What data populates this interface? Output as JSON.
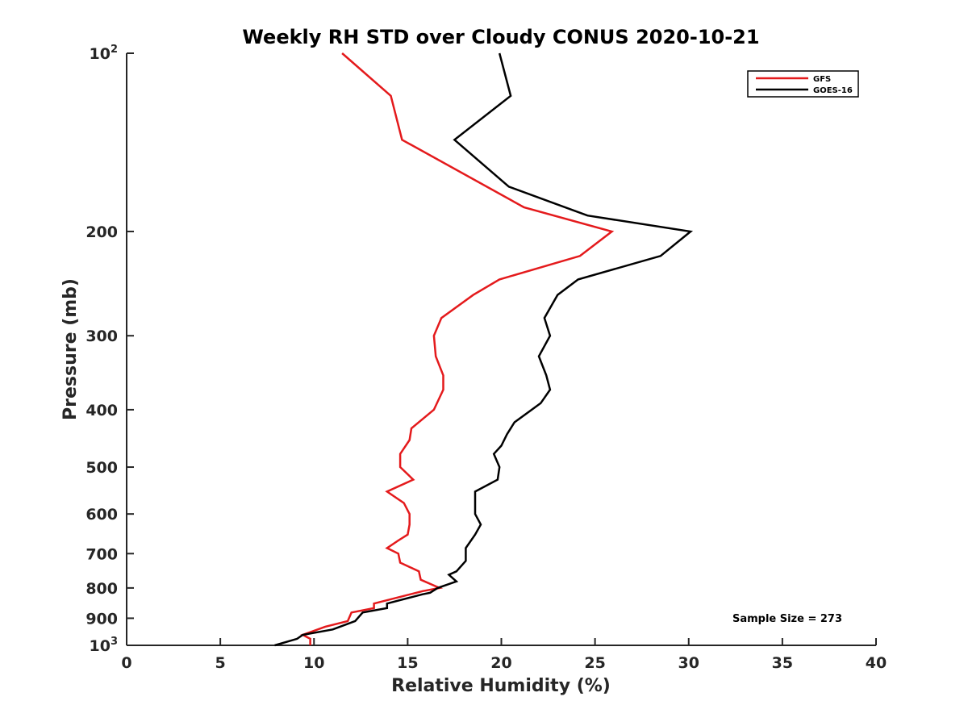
{
  "chart_data": {
    "type": "line",
    "title": "Weekly RH STD over Cloudy CONUS 2020-10-21",
    "xlabel": "Relative Humidity (%)",
    "ylabel": "Pressure (mb)",
    "xlim": [
      0,
      40
    ],
    "ylim": [
      100,
      1000
    ],
    "y_scale": "log",
    "y_reversed": true,
    "grid": false,
    "legend_position": "top-right",
    "x_ticks": [
      "0",
      "5",
      "10",
      "15",
      "20",
      "25",
      "30",
      "35",
      "40"
    ],
    "y_ticks": [
      {
        "value": 100,
        "base": "10",
        "exp": "2"
      },
      {
        "value": 200,
        "label": "200"
      },
      {
        "value": 300,
        "label": "300"
      },
      {
        "value": 400,
        "label": "400"
      },
      {
        "value": 500,
        "label": "500"
      },
      {
        "value": 600,
        "label": "600"
      },
      {
        "value": 700,
        "label": "700"
      },
      {
        "value": 800,
        "label": "800"
      },
      {
        "value": 900,
        "label": "900"
      },
      {
        "value": 1000,
        "base": "10",
        "exp": "3"
      }
    ],
    "annotation": "Sample Size = 273",
    "series": [
      {
        "name": "GFS",
        "color": "#e41a1c",
        "points": [
          [
            11.5,
            100
          ],
          [
            14.1,
            118
          ],
          [
            14.7,
            140
          ],
          [
            21.2,
            182
          ],
          [
            25.9,
            200
          ],
          [
            24.2,
            220
          ],
          [
            19.9,
            241
          ],
          [
            18.5,
            256
          ],
          [
            16.8,
            280
          ],
          [
            16.4,
            300
          ],
          [
            16.5,
            325
          ],
          [
            16.9,
            350
          ],
          [
            16.9,
            370
          ],
          [
            16.4,
            400
          ],
          [
            15.2,
            430
          ],
          [
            15.1,
            450
          ],
          [
            14.6,
            475
          ],
          [
            14.6,
            500
          ],
          [
            15.3,
            525
          ],
          [
            13.9,
            550
          ],
          [
            14.8,
            575
          ],
          [
            15.1,
            600
          ],
          [
            15.1,
            625
          ],
          [
            15.0,
            650
          ],
          [
            14.5,
            665
          ],
          [
            13.9,
            685
          ],
          [
            14.5,
            700
          ],
          [
            14.6,
            725
          ],
          [
            15.6,
            750
          ],
          [
            15.7,
            775
          ],
          [
            16.7,
            800
          ],
          [
            15.8,
            810
          ],
          [
            13.2,
            850
          ],
          [
            13.2,
            865
          ],
          [
            12.0,
            880
          ],
          [
            11.8,
            910
          ],
          [
            10.6,
            930
          ],
          [
            9.4,
            960
          ],
          [
            9.8,
            975
          ],
          [
            9.8,
            1000
          ]
        ]
      },
      {
        "name": "GOES-16",
        "color": "#000000",
        "points": [
          [
            19.9,
            100
          ],
          [
            20.5,
            118
          ],
          [
            17.5,
            140
          ],
          [
            20.4,
            168
          ],
          [
            24.6,
            188
          ],
          [
            30.1,
            200
          ],
          [
            28.5,
            220
          ],
          [
            24.1,
            241
          ],
          [
            23.0,
            256
          ],
          [
            22.3,
            280
          ],
          [
            22.6,
            300
          ],
          [
            22.0,
            325
          ],
          [
            22.4,
            350
          ],
          [
            22.6,
            370
          ],
          [
            22.1,
            390
          ],
          [
            20.7,
            420
          ],
          [
            20.3,
            440
          ],
          [
            20.0,
            460
          ],
          [
            19.6,
            475
          ],
          [
            19.9,
            500
          ],
          [
            19.8,
            525
          ],
          [
            18.6,
            550
          ],
          [
            18.6,
            600
          ],
          [
            18.9,
            625
          ],
          [
            18.6,
            650
          ],
          [
            18.1,
            685
          ],
          [
            18.1,
            720
          ],
          [
            17.6,
            750
          ],
          [
            17.2,
            760
          ],
          [
            17.6,
            780
          ],
          [
            16.6,
            800
          ],
          [
            16.2,
            815
          ],
          [
            15.8,
            820
          ],
          [
            13.9,
            850
          ],
          [
            13.9,
            865
          ],
          [
            12.6,
            880
          ],
          [
            12.2,
            910
          ],
          [
            11.0,
            940
          ],
          [
            9.4,
            960
          ],
          [
            9.1,
            975
          ],
          [
            7.9,
            1000
          ]
        ]
      }
    ]
  }
}
